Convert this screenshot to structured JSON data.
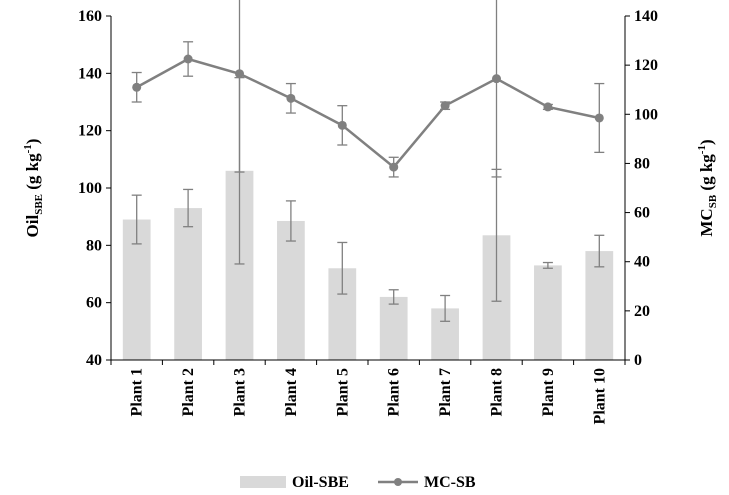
{
  "chart_data": {
    "type": "bar+line",
    "categories": [
      "Plant 1",
      "Plant 2",
      "Plant 3",
      "Plant 4",
      "Plant 5",
      "Plant 6",
      "Plant 7",
      "Plant 8",
      "Plant 9",
      "Plant 10"
    ],
    "series": [
      {
        "name": "Oil-SBE",
        "type": "bar",
        "axis": "left",
        "values": [
          89,
          93,
          106,
          88.5,
          72,
          62,
          58,
          83.5,
          73,
          78
        ],
        "error": [
          8.5,
          6.5,
          32.5,
          7,
          9,
          2.5,
          4.5,
          23,
          1,
          5.5
        ],
        "color": "#d9d9d9"
      },
      {
        "name": "MC-SB",
        "type": "line",
        "axis": "right",
        "values": [
          111,
          122.5,
          116.5,
          106.5,
          95.5,
          78.5,
          103.5,
          114.5,
          103,
          98.5
        ],
        "error": [
          6,
          7,
          40,
          6,
          8,
          4,
          1.5,
          40,
          1,
          14
        ],
        "color": "#808080"
      }
    ],
    "left_axis": {
      "label_main": "Oil",
      "label_sub": "SBE",
      "label_unit": " (g kg",
      "label_sup": "-1",
      "label_end": ")",
      "range": [
        40,
        160
      ],
      "ticks": [
        "40",
        "60",
        "80",
        "100",
        "120",
        "140",
        "160"
      ]
    },
    "right_axis": {
      "label_main": "MC",
      "label_sub": "SB",
      "label_unit": " (g kg",
      "label_sup": "-1",
      "label_end": ")",
      "range": [
        0,
        140
      ],
      "ticks": [
        "0",
        "20",
        "40",
        "60",
        "80",
        "100",
        "120",
        "140"
      ]
    },
    "legend": {
      "position": "bottom",
      "items": [
        "Oil-SBE",
        "MC-SB"
      ]
    },
    "grid": false
  }
}
